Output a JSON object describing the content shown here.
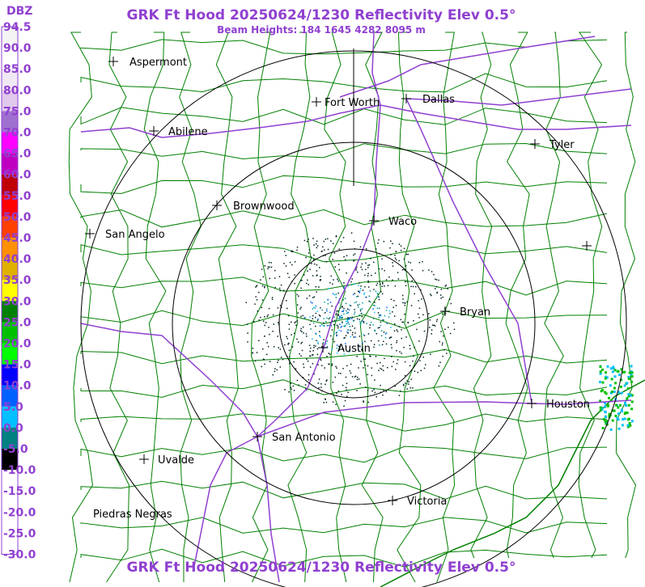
{
  "header": {
    "title": "GRK Ft Hood 20250624/1230 Reflectivity Elev 0.5°",
    "subtitle": "Beam Heights: 184 1645 4282 8095 m"
  },
  "legend": {
    "title": "DBZ",
    "labels": [
      "94.5",
      "90.0",
      "85.0",
      "80.0",
      "75.0",
      "70.0",
      "65.0",
      "60.0",
      "55.0",
      "50.0",
      "45.0",
      "40.0",
      "35.0",
      "30.0",
      "25.0",
      "20.0",
      "15.0",
      "10.0",
      "5.0",
      "0.0",
      "-5.0",
      "-10.0",
      "-15.0",
      "-20.0",
      "-25.0",
      "-30.0"
    ]
  },
  "cities": [
    "Aspermont",
    "Abilene",
    "Fort Worth",
    "Dallas",
    "Tyler",
    "Brownwood",
    "Waco",
    "San Angelo",
    "Bryan",
    "Austin",
    "Houston",
    "San Antonio",
    "Uvalde",
    "Victoria",
    "Piedras Negras"
  ]
}
